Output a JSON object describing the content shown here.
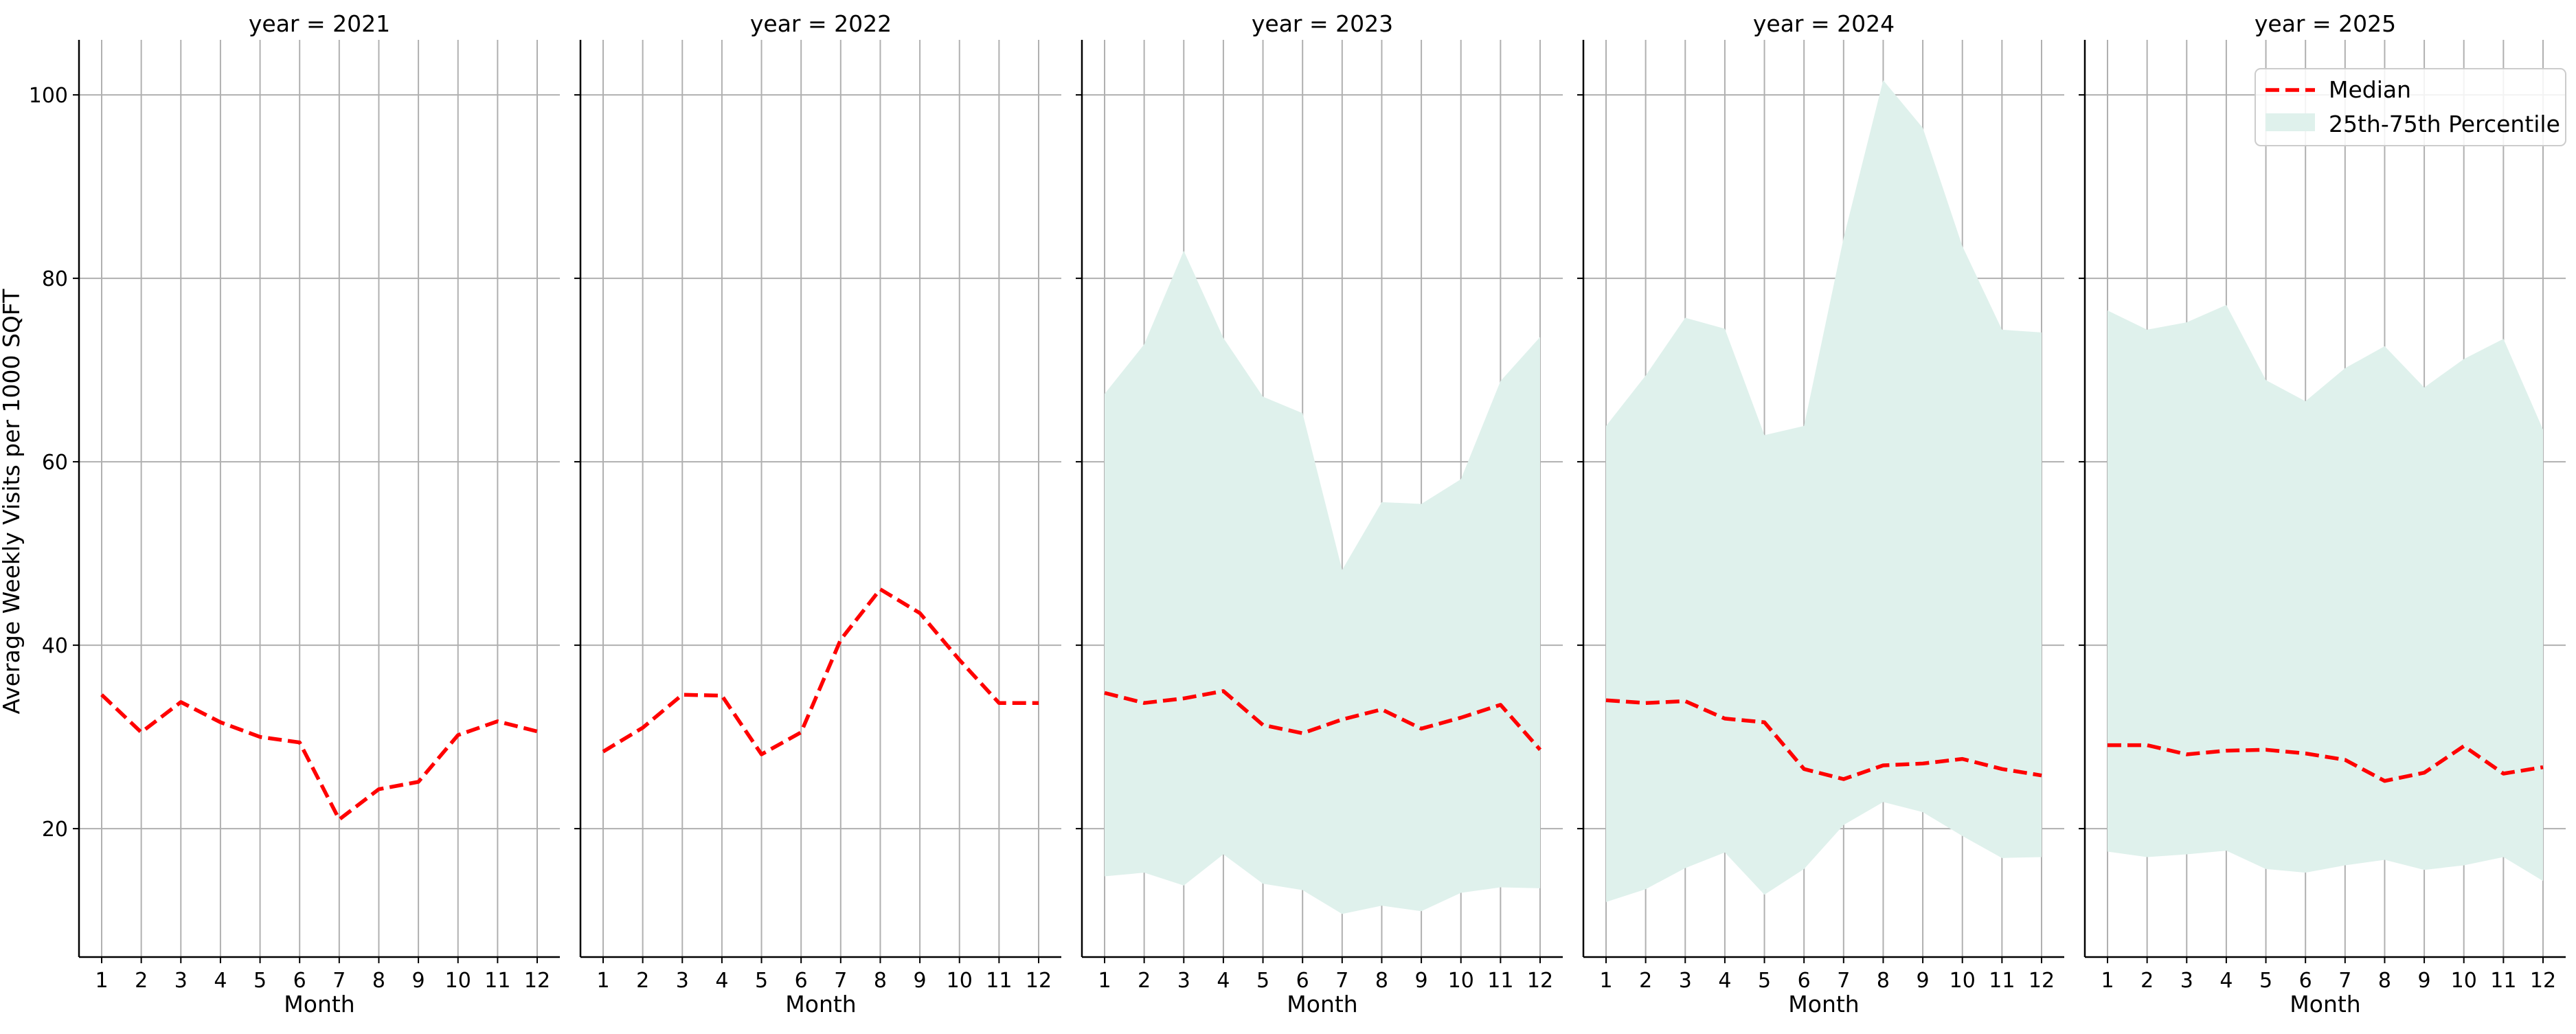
{
  "chart_data": {
    "type": "line",
    "ylabel": "Average Weekly Visits per 1000 SQFT",
    "xlabel": "Month",
    "xticks": [
      1,
      2,
      3,
      4,
      5,
      6,
      7,
      8,
      9,
      10,
      11,
      12
    ],
    "ylim": [
      6,
      106
    ],
    "yticks": [
      20,
      40,
      60,
      80,
      100
    ],
    "grid": true,
    "legend": {
      "placement": "top-right",
      "entries": [
        "Median",
        "25th-75th Percentile"
      ]
    },
    "colors": {
      "median": "#ff0000",
      "band": "#dff1ec",
      "grid": "#b0b0b0"
    },
    "panels": [
      {
        "title": "year = 2021",
        "median": [
          34.6,
          30.5,
          33.8,
          31.6,
          30.0,
          29.4,
          21.0,
          24.3,
          25.1,
          30.2,
          31.7,
          30.6
        ],
        "p25": null,
        "p75": null
      },
      {
        "title": "year = 2022",
        "median": [
          28.4,
          31.0,
          34.6,
          34.5,
          28.1,
          30.5,
          40.6,
          46.1,
          43.5,
          38.4,
          33.7,
          33.7
        ],
        "p25": null,
        "p75": null
      },
      {
        "title": "year = 2023",
        "median": [
          34.8,
          33.7,
          34.2,
          35.0,
          31.3,
          30.4,
          31.9,
          33.0,
          30.9,
          32.1,
          33.5,
          28.6
        ],
        "p25": [
          14.8,
          15.2,
          13.8,
          17.2,
          14.0,
          13.3,
          10.7,
          11.6,
          11.0,
          13.0,
          13.6,
          13.5
        ],
        "p75": [
          67.4,
          72.8,
          83.0,
          73.5,
          67.1,
          65.3,
          48.2,
          55.6,
          55.4,
          58.1,
          68.8,
          73.6
        ]
      },
      {
        "title": "year = 2024",
        "median": [
          34.0,
          33.7,
          33.9,
          32.0,
          31.6,
          26.5,
          25.4,
          26.9,
          27.1,
          27.6,
          26.5,
          25.8
        ],
        "p25": [
          12.0,
          13.4,
          15.7,
          17.4,
          12.8,
          15.6,
          20.4,
          22.9,
          21.8,
          19.2,
          16.8,
          16.9
        ],
        "p75": [
          63.9,
          69.4,
          75.7,
          74.5,
          62.9,
          63.9,
          84.4,
          101.6,
          96.4,
          83.5,
          74.4,
          74.1
        ]
      },
      {
        "title": "year = 2025",
        "median": [
          29.1,
          29.1,
          28.1,
          28.5,
          28.6,
          28.2,
          27.5,
          25.2,
          26.1,
          29.0,
          26.0,
          26.7
        ],
        "p25": [
          17.5,
          16.9,
          17.2,
          17.6,
          15.6,
          15.2,
          16.0,
          16.6,
          15.5,
          16.0,
          16.9,
          14.3
        ],
        "p75": [
          76.5,
          74.4,
          75.2,
          77.1,
          68.9,
          66.6,
          70.2,
          72.6,
          68.1,
          71.2,
          73.4,
          63.5
        ]
      }
    ]
  }
}
